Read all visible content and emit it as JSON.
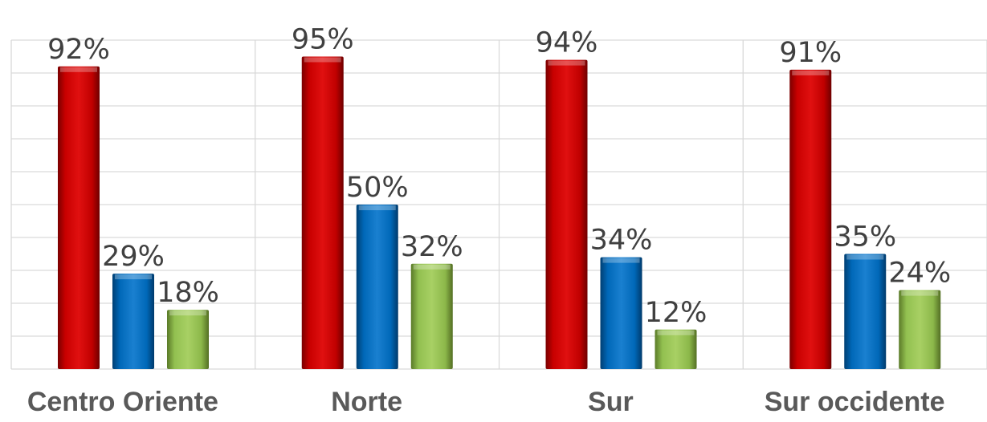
{
  "chart_data": {
    "type": "bar",
    "title": "",
    "xlabel": "",
    "ylabel": "",
    "ylim": [
      0,
      100
    ],
    "grid": true,
    "legend": "none",
    "categories": [
      "Centro Oriente",
      "Norte",
      "Sur",
      "Sur occidente"
    ],
    "series": [
      {
        "values": [
          92,
          95,
          94,
          91
        ],
        "color": "#c00000"
      },
      {
        "values": [
          29,
          50,
          34,
          35
        ],
        "color": "#0070c0"
      },
      {
        "values": [
          18,
          32,
          12,
          24
        ],
        "color": "#92c050"
      }
    ],
    "value_labels": [
      [
        "92%",
        "95%",
        "94%",
        "91%"
      ],
      [
        "29%",
        "50%",
        "34%",
        "35%"
      ],
      [
        "18%",
        "32%",
        "12%",
        "24%"
      ]
    ]
  }
}
